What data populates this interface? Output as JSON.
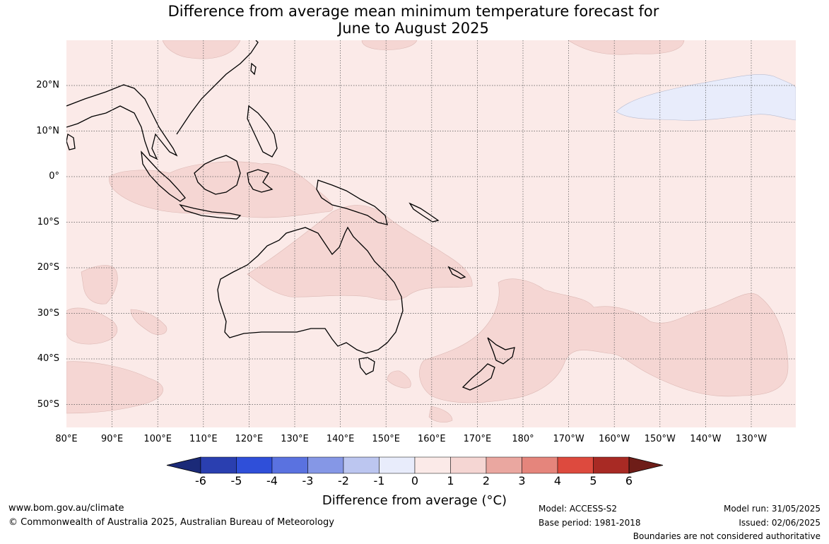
{
  "title": {
    "line1": "Difference from average mean minimum temperature forecast for",
    "line2": "June to August 2025"
  },
  "map": {
    "lat_labels": [
      "20°N",
      "10°N",
      "0°",
      "10°S",
      "20°S",
      "30°S",
      "40°S",
      "50°S"
    ],
    "lon_labels": [
      "80°E",
      "90°E",
      "100°E",
      "110°E",
      "120°E",
      "130°E",
      "140°E",
      "150°E",
      "160°E",
      "170°E",
      "180°",
      "170°W",
      "160°W",
      "150°W",
      "140°W",
      "130°W"
    ],
    "background_color": "#fbeae8",
    "warm_color": "#f5d6d3",
    "cool_color": "#e8ecfb",
    "coastline_color": "#000000"
  },
  "colorbar": {
    "ticks": [
      "-6",
      "-5",
      "-4",
      "-3",
      "-2",
      "-1",
      "0",
      "1",
      "2",
      "3",
      "4",
      "5",
      "6"
    ],
    "colors": [
      "#1b2a78",
      "#2a3fb0",
      "#2f4fd9",
      "#5a72e0",
      "#8597e6",
      "#bcc6f0",
      "#e8ecfb",
      "#fbeae8",
      "#f5d6d3",
      "#eaa7a0",
      "#e5857c",
      "#dd4a3e",
      "#a82a24",
      "#6e1d18"
    ],
    "title": "Difference from average (°C)"
  },
  "footer": {
    "website": "www.bom.gov.au/climate",
    "copyright": "© Commonwealth of Australia 2025, Australian Bureau of Meteorology",
    "model": "Model: ACCESS-S2",
    "base_period": "Base period: 1981-2018",
    "model_run": "Model run: 31/05/2025",
    "issued": "Issued: 02/06/2025",
    "disclaimer": "Boundaries are not considered authoritative"
  }
}
